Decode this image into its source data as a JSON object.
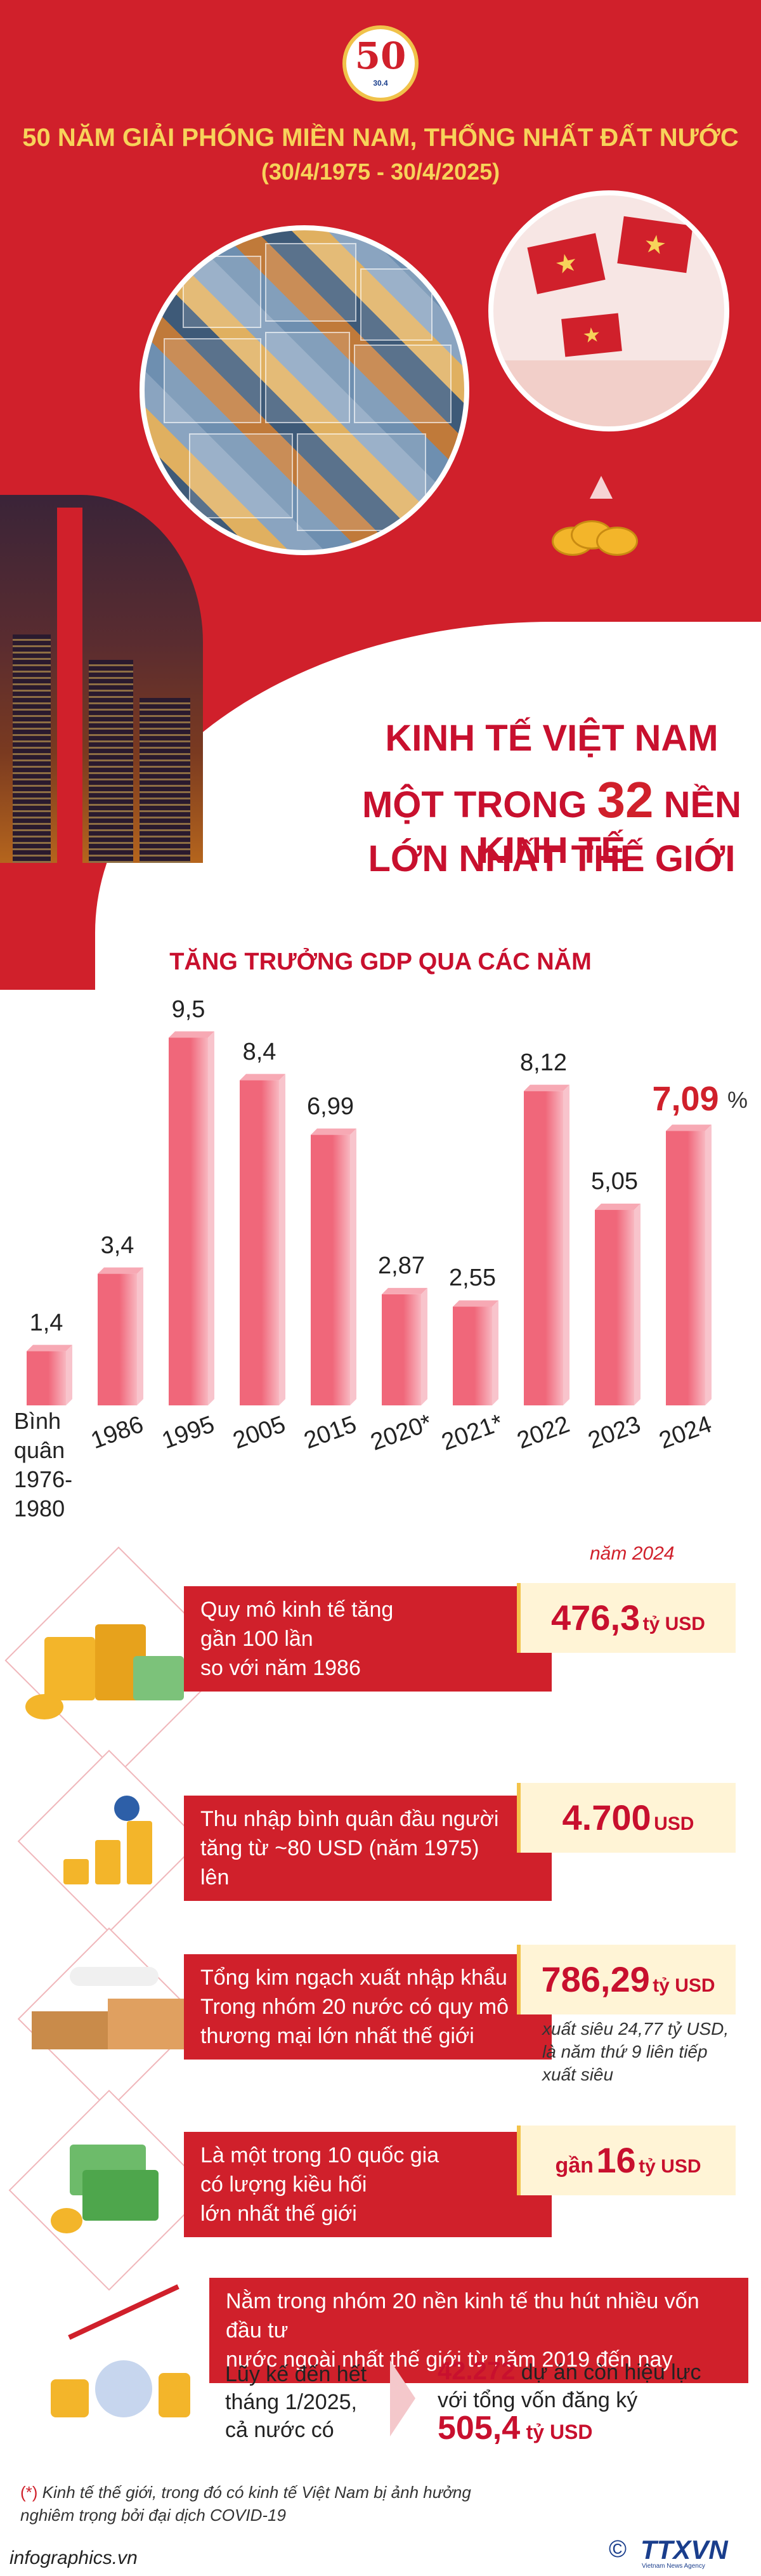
{
  "header": {
    "logo_number": "50",
    "logo_caption": "30.4",
    "title_line1": "50 NĂM GIẢI PHÓNG MIỀN NAM, THỐNG NHẤT ĐẤT NƯỚC",
    "title_line2": "(30/4/1975 - 30/4/2025)"
  },
  "headline": {
    "line1": "KINH TẾ VIỆT NAM",
    "line2_pre": "MỘT TRONG",
    "line2_num": "32",
    "line2_post": "NỀN KINH TẾ",
    "line3": "LỚN NHẤT THẾ GIỚI"
  },
  "colors": {
    "primary_red": "#d0202b",
    "gold": "#f7d35a",
    "bar_pink": "#f0677a",
    "bar_pink_light": "#f8b7c0"
  },
  "chart_data": {
    "type": "bar",
    "title": "TĂNG TRƯỞNG GDP QUA CÁC NĂM",
    "categories": [
      "Bình quân 1976-1980",
      "1986",
      "1995",
      "2005",
      "2015",
      "2020*",
      "2021*",
      "2022",
      "2023",
      "2024"
    ],
    "values": [
      1.4,
      3.4,
      9.5,
      8.4,
      6.99,
      2.87,
      2.55,
      8.12,
      5.05,
      7.09
    ],
    "value_labels": [
      "1,4",
      "3,4",
      "9,5",
      "8,4",
      "6,99",
      "2,87",
      "2,55",
      "8,12",
      "5,05",
      "7,09"
    ],
    "tick_labels": [
      "",
      "1986",
      "1995",
      "2005",
      "2015",
      "2020*",
      "2021*",
      "2022",
      "2023",
      "2024"
    ],
    "first_tick_lines": [
      "Bình",
      "quân",
      "1976-",
      "1980"
    ],
    "highlight_index": 9,
    "highlight_unit": "%",
    "ylim": [
      0,
      10
    ],
    "grid": false,
    "legend": "none"
  },
  "year_note": "năm 2024",
  "stats": [
    {
      "icon": "money-stack-icon",
      "band_lines": [
        "Quy mô kinh tế tăng",
        "gần 100 lần",
        "so với năm 1986"
      ],
      "value_pre": "",
      "value": "476,3",
      "unit": "tỷ USD"
    },
    {
      "icon": "income-growth-icon",
      "band_lines": [
        "Thu nhập bình quân đầu người",
        "tăng từ ~80 USD (năm 1975)",
        "lên"
      ],
      "value_pre": "",
      "value": "4.700",
      "unit": "USD"
    },
    {
      "icon": "trade-logistics-icon",
      "band_lines": [
        "Tổng kim ngạch xuất nhập khẩu",
        "Trong nhóm 20 nước có quy mô",
        "thương mại lớn nhất thế giới"
      ],
      "value_pre": "",
      "value": "786,29",
      "unit": "tỷ USD",
      "side_note": "xuất siêu 24,77 tỷ USD, là năm thứ 9 liên tiếp xuất siêu"
    },
    {
      "icon": "remittance-icon",
      "band_lines": [
        "Là một trong 10 quốc gia",
        "có lượng kiều hối",
        "lớn nhất thế giới"
      ],
      "value_pre": "gần",
      "value": "16",
      "unit": "tỷ USD"
    }
  ],
  "fdi": {
    "icon": "fdi-investment-icon",
    "band_lines": [
      "Nằm trong nhóm 20 nền kinh tế thu hút nhiều vốn đầu tư",
      "nước ngoài nhất thế giới từ năm 2019 đến nay"
    ],
    "left_lines": [
      "Lũy kế đến hết",
      "tháng 1/2025,",
      "cả nước có"
    ],
    "projects_num": "42.272",
    "projects_text": "dự án còn hiệu lực",
    "capital_text": "với tổng vốn đăng ký",
    "capital_value": "505,4",
    "capital_unit": "tỷ USD"
  },
  "footnote": {
    "star": "(*)",
    "text": "Kinh tế thế giới, trong đó có kinh tế Việt Nam bị ảnh hưởng nghiêm trọng bởi đại dịch COVID-19"
  },
  "footer": {
    "url": "infographics.vn",
    "copyright": "©",
    "brand": "TTXVN",
    "agency": "Vietnam News Agency"
  }
}
